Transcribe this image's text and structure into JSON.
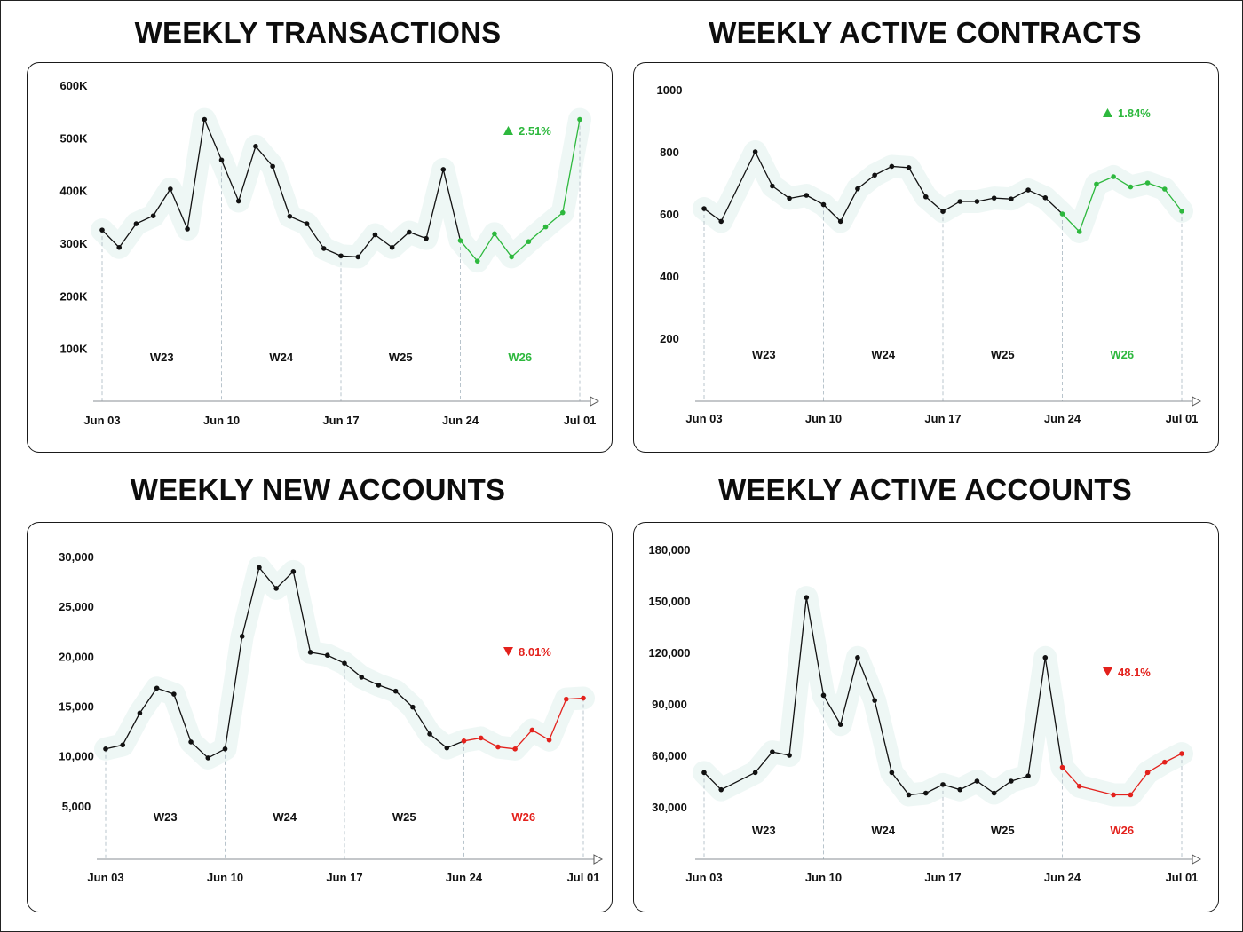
{
  "chart_data": [
    {
      "type": "line",
      "title": "WEEKLY TRANSACTIONS",
      "ylabels": [
        "600K",
        "500K",
        "400K",
        "300K",
        "200K",
        "100K"
      ],
      "yticks": [
        600000,
        500000,
        400000,
        300000,
        200000,
        100000
      ],
      "ylim": [
        0,
        600000
      ],
      "xlabels": [
        "Jun 03",
        "Jun 10",
        "Jun 17",
        "Jun 24",
        "Jul 01"
      ],
      "weeks": [
        "W23",
        "W24",
        "W25",
        "W26"
      ],
      "change": "2.51%",
      "direction": "up",
      "accent": "#2db83d",
      "values": [
        325000,
        292000,
        337000,
        352000,
        403000,
        327000,
        535000,
        458000,
        380000,
        484000,
        446000,
        351000,
        337000,
        290000,
        276000,
        274000,
        316000,
        292000,
        321000,
        309000,
        440000,
        305000,
        266000,
        318000,
        274000,
        303000,
        331000,
        358000,
        535000
      ]
    },
    {
      "type": "line",
      "title": "WEEKLY ACTIVE CONTRACTS",
      "ylabels": [
        "1000",
        "800",
        "600",
        "400",
        "200"
      ],
      "yticks": [
        1000,
        800,
        600,
        400,
        200
      ],
      "ylim": [
        0,
        1000
      ],
      "xlabels": [
        "Jun 03",
        "Jun 10",
        "Jun 17",
        "Jun 24",
        "Jul 01"
      ],
      "weeks": [
        "W23",
        "W24",
        "W25",
        "W26"
      ],
      "change": "1.84%",
      "direction": "up",
      "accent": "#2db83d",
      "values": [
        617,
        576,
        null,
        800,
        690,
        650,
        660,
        630,
        576,
        681,
        725,
        753,
        749,
        655,
        608,
        640,
        640,
        651,
        648,
        677,
        652,
        600,
        543,
        696,
        720,
        687,
        700,
        680,
        609
      ]
    },
    {
      "type": "line",
      "title": "WEEKLY NEW ACCOUNTS",
      "ylabels": [
        "30,000",
        "25,000",
        "20,000",
        "15,000",
        "10,000",
        "5,000"
      ],
      "yticks": [
        30000,
        25000,
        20000,
        15000,
        10000,
        5000
      ],
      "ylim": [
        0,
        30000
      ],
      "xlabels": [
        "Jun 03",
        "Jun 10",
        "Jun 17",
        "Jun 24",
        "Jul 01"
      ],
      "weeks": [
        "W23",
        "W24",
        "W25",
        "W26"
      ],
      "change": "8.01%",
      "direction": "down",
      "accent": "#e3211c",
      "values": [
        10700,
        11100,
        14300,
        16800,
        16200,
        11400,
        9800,
        10700,
        22000,
        28900,
        26800,
        28500,
        20400,
        20100,
        19300,
        17900,
        17100,
        16500,
        14900,
        12200,
        10800,
        11500,
        11800,
        10900,
        10700,
        12600,
        11600,
        15700,
        15800
      ]
    },
    {
      "type": "line",
      "title": "WEEKLY ACTIVE ACCOUNTS",
      "ylabels": [
        "180,000",
        "150,000",
        "120,000",
        "90,000",
        "60,000",
        "30,000"
      ],
      "yticks": [
        180000,
        150000,
        120000,
        90000,
        60000,
        30000
      ],
      "ylim": [
        0,
        180000
      ],
      "xlabels": [
        "Jun 03",
        "Jun 10",
        "Jun 17",
        "Jun 24",
        "Jul 01"
      ],
      "weeks": [
        "W23",
        "W24",
        "W25",
        "W26"
      ],
      "change": "48.1%",
      "direction": "down",
      "accent": "#e3211c",
      "values": [
        50000,
        40000,
        null,
        50000,
        62000,
        60000,
        152000,
        95000,
        78000,
        117000,
        92000,
        50000,
        37000,
        38000,
        43000,
        40000,
        45000,
        38000,
        45000,
        48000,
        117000,
        53000,
        42000,
        null,
        37000,
        37000,
        50000,
        56000,
        61000
      ]
    }
  ]
}
